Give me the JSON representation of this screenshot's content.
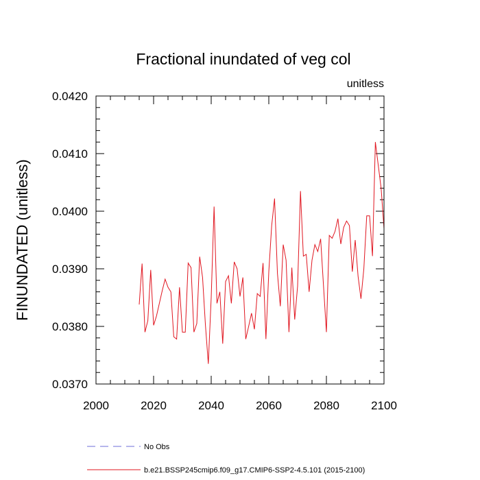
{
  "chart_data": {
    "type": "line",
    "title": "Fractional inundated of veg col",
    "units_label": "unitless",
    "ylabel": "FINUNDATED  (unitless)",
    "xlabel": "",
    "xlim": [
      2000,
      2100
    ],
    "ylim": [
      0.037,
      0.042
    ],
    "x_ticks": [
      {
        "value": 2000,
        "label": "2000"
      },
      {
        "value": 2020,
        "label": "2020"
      },
      {
        "value": 2040,
        "label": "2040"
      },
      {
        "value": 2060,
        "label": "2060"
      },
      {
        "value": 2080,
        "label": "2080"
      },
      {
        "value": 2100,
        "label": "2100"
      }
    ],
    "y_ticks": [
      {
        "value": 0.037,
        "label": "0.0370"
      },
      {
        "value": 0.038,
        "label": "0.0380"
      },
      {
        "value": 0.039,
        "label": "0.0390"
      },
      {
        "value": 0.04,
        "label": "0.0400"
      },
      {
        "value": 0.041,
        "label": "0.0410"
      },
      {
        "value": 0.042,
        "label": "0.0420"
      }
    ],
    "series": [
      {
        "name": "b.e21.BSSP245cmip6.f09_g17.CMIP6-SSP2-4.5.101 (2015-2100)",
        "color": "#e0141e",
        "style": "solid",
        "x": [
          2015,
          2016,
          2017,
          2018,
          2019,
          2020,
          2021,
          2022,
          2023,
          2024,
          2025,
          2026,
          2027,
          2028,
          2029,
          2030,
          2031,
          2032,
          2033,
          2034,
          2035,
          2036,
          2037,
          2038,
          2039,
          2040,
          2041,
          2042,
          2043,
          2044,
          2045,
          2046,
          2047,
          2048,
          2049,
          2050,
          2051,
          2052,
          2053,
          2054,
          2055,
          2056,
          2057,
          2058,
          2059,
          2060,
          2061,
          2062,
          2063,
          2064,
          2065,
          2066,
          2067,
          2068,
          2069,
          2070,
          2071,
          2072,
          2073,
          2074,
          2075,
          2076,
          2077,
          2078,
          2079,
          2080,
          2081,
          2082,
          2083,
          2084,
          2085,
          2086,
          2087,
          2088,
          2089,
          2090,
          2091,
          2092,
          2093,
          2094,
          2095,
          2096,
          2097,
          2098,
          2099,
          2100
        ],
        "values": [
          0.03838,
          0.03909,
          0.0379,
          0.0381,
          0.03898,
          0.03802,
          0.03818,
          0.0384,
          0.03862,
          0.03882,
          0.03868,
          0.0386,
          0.03782,
          0.03778,
          0.03868,
          0.0379,
          0.0379,
          0.0391,
          0.03902,
          0.0379,
          0.03805,
          0.03921,
          0.03885,
          0.03802,
          0.03735,
          0.0385,
          0.04008,
          0.0384,
          0.0386,
          0.0377,
          0.03878,
          0.03888,
          0.0384,
          0.03912,
          0.039,
          0.03852,
          0.03885,
          0.03778,
          0.038,
          0.03823,
          0.03795,
          0.03857,
          0.03852,
          0.0391,
          0.03778,
          0.03895,
          0.03975,
          0.04022,
          0.03892,
          0.03835,
          0.03942,
          0.03915,
          0.0379,
          0.03902,
          0.03812,
          0.0387,
          0.04035,
          0.03922,
          0.03925,
          0.0386,
          0.03915,
          0.03942,
          0.0393,
          0.03952,
          0.0387,
          0.0379,
          0.03958,
          0.03953,
          0.03965,
          0.03987,
          0.03943,
          0.03972,
          0.03983,
          0.03975,
          0.03895,
          0.0395,
          0.03887,
          0.03848,
          0.039,
          0.03992,
          0.03992,
          0.03922,
          0.0412,
          0.0408,
          0.0404,
          0.0397
        ]
      }
    ],
    "legend": [
      {
        "label": "No Obs",
        "color": "#6d6dd8",
        "style": "dashed"
      },
      {
        "label": "b.e21.BSSP245cmip6.f09_g17.CMIP6-SSP2-4.5.101 (2015-2100)",
        "color": "#e0141e",
        "style": "solid"
      }
    ],
    "legend_position": "bottom"
  }
}
